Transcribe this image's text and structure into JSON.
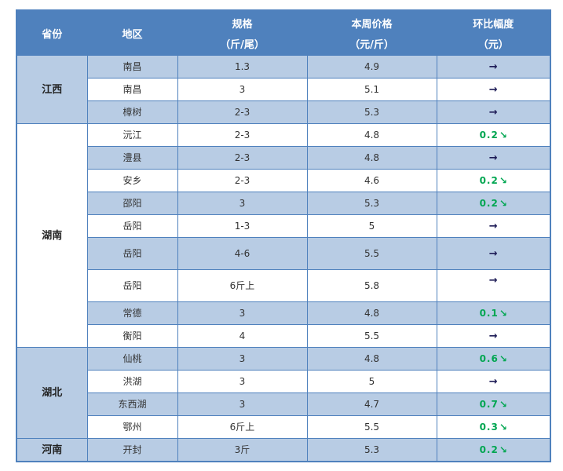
{
  "colors": {
    "header_bg": "#4f81bd",
    "header_text": "#ffffff",
    "band_blue": "#b8cce4",
    "band_white": "#ffffff",
    "border": "#4f81bd",
    "text": "#333333",
    "flat_arrow": "#1d1b56",
    "down_green": "#00a651"
  },
  "icons": {
    "flat_arrow": "→",
    "down_arrow": "↘"
  },
  "header": {
    "columns": [
      {
        "label": "省份",
        "sub": ""
      },
      {
        "label": "地区",
        "sub": ""
      },
      {
        "label": "规格",
        "sub": "（斤/尾）"
      },
      {
        "label": "本周价格",
        "sub": "（元/斤）"
      },
      {
        "label": "环比幅度",
        "sub": "（元）"
      }
    ]
  },
  "groups": [
    {
      "province": "江西",
      "rows": [
        {
          "region": "南昌",
          "spec": "1.3",
          "price": "4.9",
          "change": "flat"
        },
        {
          "region": "南昌",
          "spec": "3",
          "price": "5.1",
          "change": "flat"
        },
        {
          "region": "樟树",
          "spec": "2-3",
          "price": "5.3",
          "change": "flat"
        }
      ]
    },
    {
      "province": "湖南",
      "rows": [
        {
          "region": "沅江",
          "spec": "2-3",
          "price": "4.8",
          "change": "down",
          "change_value": "0.2"
        },
        {
          "region": "澧县",
          "spec": "2-3",
          "price": "4.8",
          "change": "flat"
        },
        {
          "region": "安乡",
          "spec": "2-3",
          "price": "4.6",
          "change": "down",
          "change_value": "0.2"
        },
        {
          "region": "邵阳",
          "spec": "3",
          "price": "5.3",
          "change": "down",
          "change_value": "0.2"
        },
        {
          "region": "岳阳",
          "spec": "1-3",
          "price": "5",
          "change": "flat"
        },
        {
          "region": "岳阳",
          "spec": "4-6",
          "price": "5.5",
          "change": "flat",
          "tall": true
        },
        {
          "region": "岳阳",
          "spec": "6斤上",
          "price": "5.8",
          "change": "flat",
          "tall": true,
          "arrow_top": true
        },
        {
          "region": "常德",
          "spec": "3",
          "price": "4.8",
          "change": "down",
          "change_value": "0.1"
        },
        {
          "region": "衡阳",
          "spec": "4",
          "price": "5.5",
          "change": "flat"
        }
      ]
    },
    {
      "province": "湖北",
      "rows": [
        {
          "region": "仙桃",
          "spec": "3",
          "price": "4.8",
          "change": "down",
          "change_value": "0.6"
        },
        {
          "region": "洪湖",
          "spec": "3",
          "price": "5",
          "change": "flat"
        },
        {
          "region": "东西湖",
          "spec": "3",
          "price": "4.7",
          "change": "down",
          "change_value": "0.7"
        },
        {
          "region": "鄂州",
          "spec": "6斤上",
          "price": "5.5",
          "change": "down",
          "change_value": "0.3"
        }
      ]
    },
    {
      "province": "河南",
      "rows": [
        {
          "region": "开封",
          "spec": "3斤",
          "price": "5.3",
          "change": "down",
          "change_value": "0.2"
        }
      ]
    }
  ]
}
